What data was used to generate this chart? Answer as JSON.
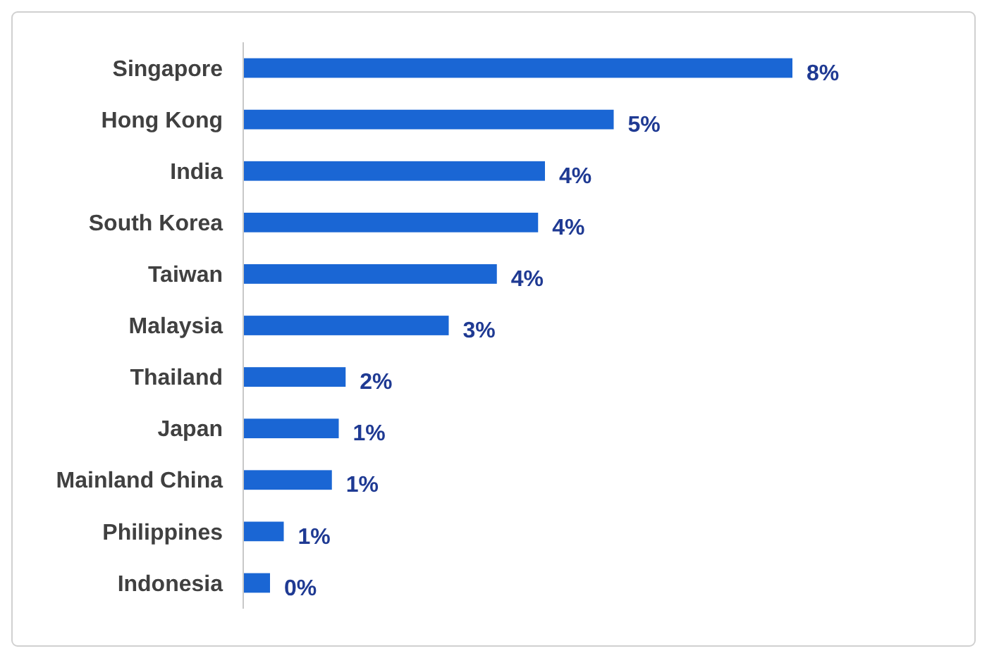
{
  "chart_data": {
    "type": "bar",
    "orientation": "horizontal",
    "categories": [
      "Singapore",
      "Hong Kong",
      "India",
      "South Korea",
      "Taiwan",
      "Malaysia",
      "Thailand",
      "Japan",
      "Mainland China",
      "Philippines",
      "Indonesia"
    ],
    "values": [
      8.0,
      5.4,
      4.4,
      4.3,
      3.7,
      3.0,
      1.5,
      1.4,
      1.3,
      0.6,
      0.4
    ],
    "value_labels": [
      "8%",
      "5%",
      "4%",
      "4%",
      "4%",
      "3%",
      "2%",
      "1%",
      "1%",
      "1%",
      "0%"
    ],
    "color": "#1a66d4"
  }
}
